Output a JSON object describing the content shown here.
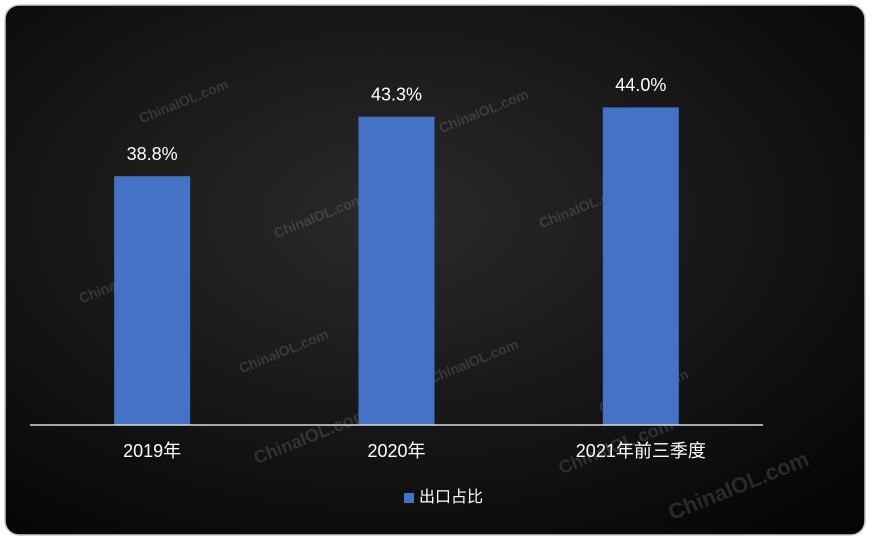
{
  "chart_data": {
    "type": "bar",
    "categories": [
      "2019年",
      "2020年",
      "2021年前三季度"
    ],
    "series": [
      {
        "name": "出口占比",
        "color": "#4472c4",
        "values": [
          38.8,
          43.3,
          44.0
        ],
        "value_labels": [
          "38.8%",
          "43.3%",
          "44.0%"
        ]
      }
    ],
    "ylim": [
      20,
      50
    ],
    "legend": "bottom",
    "watermark": "ChinaIOL.com"
  }
}
